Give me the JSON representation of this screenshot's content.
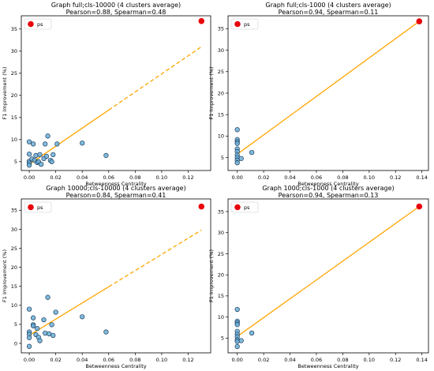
{
  "chart_data": [
    {
      "type": "scatter",
      "title": "Graph full;cls-10000 (4 clusters average)",
      "subtitle": "Pearson=0.88, Spearman=0.48",
      "xlabel": "Betweenness Centrality",
      "ylabel": "F1 Improvement (%)",
      "xlim": [
        -0.006,
        0.137
      ],
      "ylim": [
        3.0,
        38.0
      ],
      "xticks": [
        0.0,
        0.02,
        0.04,
        0.06,
        0.08,
        0.1,
        0.12
      ],
      "xtick_labels": [
        "0.00",
        "0.02",
        "0.04",
        "0.06",
        "0.08",
        "0.10",
        "0.12"
      ],
      "yticks": [
        5,
        10,
        15,
        20,
        25,
        30,
        35
      ],
      "ytick_labels": [
        "5",
        "10",
        "15",
        "20",
        "25",
        "30",
        "35"
      ],
      "legend": {
        "label": "ps",
        "placement": "top-left"
      },
      "points": [
        [
          0.0,
          9.5
        ],
        [
          0.0,
          6.7
        ],
        [
          0.0,
          5.1
        ],
        [
          0.0,
          4.7
        ],
        [
          0.0,
          4.2
        ],
        [
          0.002,
          5.6
        ],
        [
          0.003,
          9.0
        ],
        [
          0.004,
          5.3
        ],
        [
          0.005,
          6.4
        ],
        [
          0.006,
          4.8
        ],
        [
          0.007,
          5.0
        ],
        [
          0.008,
          6.6
        ],
        [
          0.009,
          4.4
        ],
        [
          0.011,
          5.7
        ],
        [
          0.012,
          9.0
        ],
        [
          0.013,
          6.2
        ],
        [
          0.014,
          10.8
        ],
        [
          0.016,
          5.3
        ],
        [
          0.017,
          5.0
        ],
        [
          0.018,
          6.6
        ],
        [
          0.021,
          9.0
        ],
        [
          0.04,
          9.2
        ],
        [
          0.058,
          6.4
        ]
      ],
      "highlight": {
        "x": 0.13,
        "y": 36.8
      },
      "fit_line": {
        "x0": 0.0,
        "y0": 4.4,
        "x1": 0.13,
        "y1": 31.0,
        "solid_until": 0.06
      },
      "colors": {
        "points": "#6baed6",
        "edge": "#1f3f5f",
        "highlight": "#e8000b",
        "fit": "#ffa500"
      }
    },
    {
      "type": "scatter",
      "title": "Graph full;cls-1000 (4 clusters average)",
      "subtitle": "Pearson=0.94, Spearman=0.11",
      "xlabel": "Betweenness Centrality",
      "ylabel": "F1 Improvement (%)",
      "xlim": [
        -0.007,
        0.145
      ],
      "ylim": [
        2.0,
        38.0
      ],
      "xticks": [
        0.0,
        0.02,
        0.04,
        0.06,
        0.08,
        0.1,
        0.12,
        0.14
      ],
      "xtick_labels": [
        "0.00",
        "0.02",
        "0.04",
        "0.06",
        "0.08",
        "0.10",
        "0.12",
        "0.14"
      ],
      "yticks": [
        5,
        10,
        15,
        20,
        25,
        30,
        35
      ],
      "ytick_labels": [
        "5",
        "10",
        "15",
        "20",
        "25",
        "30",
        "35"
      ],
      "legend": {
        "label": "ps",
        "placement": "top-left"
      },
      "points": [
        [
          0.0,
          11.5
        ],
        [
          0.0,
          9.2
        ],
        [
          0.0,
          8.7
        ],
        [
          0.0,
          8.3
        ],
        [
          0.0,
          7.0
        ],
        [
          0.0,
          6.4
        ],
        [
          0.0,
          5.6
        ],
        [
          0.0,
          5.0
        ],
        [
          0.0,
          4.4
        ],
        [
          0.0,
          3.8
        ],
        [
          0.003,
          4.8
        ],
        [
          0.011,
          6.2
        ]
      ],
      "highlight": {
        "x": 0.138,
        "y": 36.7
      },
      "fit_line": {
        "x0": 0.0,
        "y0": 5.8,
        "x1": 0.138,
        "y1": 36.7,
        "solid_until": 0.138
      },
      "colors": {
        "points": "#6baed6",
        "edge": "#1f3f5f",
        "highlight": "#e8000b",
        "fit": "#ffa500"
      }
    },
    {
      "type": "scatter",
      "title": "Graph 10000;cls-10000 (4 clusters average)",
      "subtitle": "Pearson=0.84, Spearman=0.41",
      "xlabel": "Betweenness Centrality",
      "ylabel": "F1 Improvement (%)",
      "xlim": [
        -0.006,
        0.137
      ],
      "ylim": [
        -2.5,
        38.0
      ],
      "xticks": [
        0.0,
        0.02,
        0.04,
        0.06,
        0.08,
        0.1,
        0.12
      ],
      "xtick_labels": [
        "0.00",
        "0.02",
        "0.04",
        "0.06",
        "0.08",
        "0.10",
        "0.12"
      ],
      "yticks": [
        0,
        5,
        10,
        15,
        20,
        25,
        30,
        35
      ],
      "ytick_labels": [
        "0",
        "5",
        "10",
        "15",
        "20",
        "25",
        "30",
        "35"
      ],
      "legend": {
        "label": "ps",
        "placement": "top-left"
      },
      "points": [
        [
          0.0,
          9.0
        ],
        [
          0.0,
          3.0
        ],
        [
          0.0,
          2.4
        ],
        [
          0.0,
          1.5
        ],
        [
          0.0,
          -0.8
        ],
        [
          0.003,
          6.7
        ],
        [
          0.003,
          4.9
        ],
        [
          0.003,
          4.6
        ],
        [
          0.005,
          2.3
        ],
        [
          0.006,
          3.9
        ],
        [
          0.007,
          1.6
        ],
        [
          0.008,
          0.7
        ],
        [
          0.011,
          6.2
        ],
        [
          0.012,
          2.7
        ],
        [
          0.014,
          12.1
        ],
        [
          0.015,
          2.5
        ],
        [
          0.017,
          4.9
        ],
        [
          0.018,
          2.1
        ],
        [
          0.02,
          8.2
        ],
        [
          0.04,
          7.0
        ],
        [
          0.058,
          3.0
        ]
      ],
      "highlight": {
        "x": 0.13,
        "y": 36.0
      },
      "fit_line": {
        "x0": 0.0,
        "y0": 2.1,
        "x1": 0.13,
        "y1": 29.8,
        "solid_until": 0.06
      },
      "colors": {
        "points": "#6baed6",
        "edge": "#1f3f5f",
        "highlight": "#e8000b",
        "fit": "#ffa500"
      }
    },
    {
      "type": "scatter",
      "title": "Graph 1000;cls-1000 (4 clusters average)",
      "subtitle": "Pearson=0.94, Spearman=0.13",
      "xlabel": "Betweenness Centrality",
      "ylabel": "F1 Improvement (%)",
      "xlim": [
        -0.007,
        0.145
      ],
      "ylim": [
        1.5,
        38.0
      ],
      "xticks": [
        0.0,
        0.02,
        0.04,
        0.06,
        0.08,
        0.1,
        0.12,
        0.14
      ],
      "xtick_labels": [
        "0.00",
        "0.02",
        "0.04",
        "0.06",
        "0.08",
        "0.10",
        "0.12",
        "0.14"
      ],
      "yticks": [
        5,
        10,
        15,
        20,
        25,
        30,
        35
      ],
      "ytick_labels": [
        "5",
        "10",
        "15",
        "20",
        "25",
        "30",
        "35"
      ],
      "legend": {
        "label": "ps",
        "placement": "top-left"
      },
      "points": [
        [
          0.0,
          11.8
        ],
        [
          0.0,
          9.0
        ],
        [
          0.0,
          8.6
        ],
        [
          0.0,
          8.2
        ],
        [
          0.0,
          6.6
        ],
        [
          0.0,
          5.9
        ],
        [
          0.0,
          5.3
        ],
        [
          0.0,
          4.6
        ],
        [
          0.0,
          4.2
        ],
        [
          0.0,
          3.0
        ],
        [
          0.003,
          4.4
        ],
        [
          0.011,
          6.2
        ]
      ],
      "highlight": {
        "x": 0.138,
        "y": 36.2
      },
      "fit_line": {
        "x0": 0.0,
        "y0": 5.4,
        "x1": 0.138,
        "y1": 36.2,
        "solid_until": 0.138
      },
      "colors": {
        "points": "#6baed6",
        "edge": "#1f3f5f",
        "highlight": "#e8000b",
        "fit": "#ffa500"
      }
    }
  ]
}
